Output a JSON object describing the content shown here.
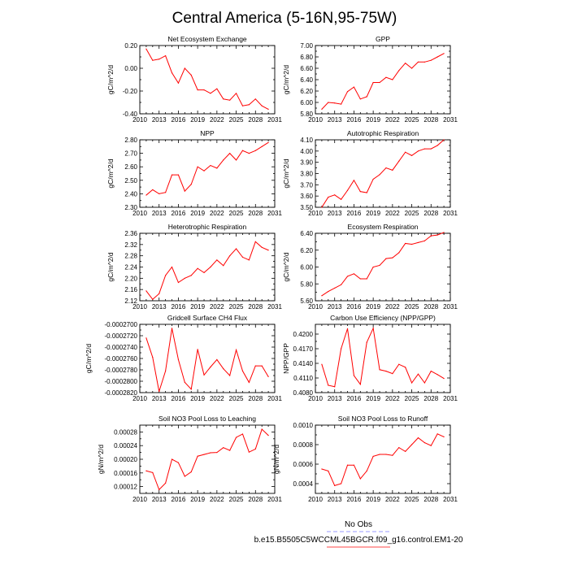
{
  "figure": {
    "title": "Central America (5-16N,95-75W)",
    "legend": [
      {
        "label": "No Obs",
        "color": "#9999ff",
        "dash": true
      },
      {
        "label": "b.e15.B5505C5WCCML45BGCR.f09_g16.control.EM1-20",
        "color": "#ff4444",
        "dash": false
      }
    ]
  },
  "chart_data": [
    {
      "type": "line",
      "title": "Net Ecosystem Exchange",
      "ylabel": "gC/m^2/d",
      "xlabel": "",
      "x": [
        2011,
        2012,
        2013,
        2014,
        2015,
        2016,
        2017,
        2018,
        2019,
        2020,
        2021,
        2022,
        2023,
        2024,
        2025,
        2026,
        2027,
        2028,
        2029,
        2030
      ],
      "series": [
        {
          "name": "b.e15.B5505C5WCCML45BGCR.f09_g16.control.EM1-20",
          "color": "#ff0000",
          "values": [
            0.17,
            0.07,
            0.08,
            0.11,
            -0.04,
            -0.13,
            0.0,
            -0.06,
            -0.19,
            -0.19,
            -0.22,
            -0.18,
            -0.27,
            -0.28,
            -0.22,
            -0.33,
            -0.32,
            -0.27,
            -0.33,
            -0.36
          ]
        }
      ],
      "xlim": [
        2010,
        2031
      ],
      "ylim": [
        -0.4,
        0.2
      ],
      "xticks": [
        2010,
        2013,
        2016,
        2019,
        2022,
        2025,
        2028,
        2031
      ],
      "yticks": [
        -0.4,
        -0.2,
        0.0,
        0.2
      ],
      "ytick_labels": [
        "-0.40",
        "-0.20",
        "0.00",
        "0.20"
      ]
    },
    {
      "type": "line",
      "title": "GPP",
      "ylabel": "gC/m^2/d",
      "xlabel": "",
      "x": [
        2011,
        2012,
        2013,
        2014,
        2015,
        2016,
        2017,
        2018,
        2019,
        2020,
        2021,
        2022,
        2023,
        2024,
        2025,
        2026,
        2027,
        2028,
        2029,
        2030
      ],
      "series": [
        {
          "name": "b.e15.B5505C5WCCML45BGCR.f09_g16.control.EM1-20",
          "color": "#ff0000",
          "values": [
            5.88,
            6.0,
            5.99,
            5.97,
            6.19,
            6.27,
            6.06,
            6.1,
            6.35,
            6.35,
            6.44,
            6.4,
            6.56,
            6.69,
            6.6,
            6.71,
            6.71,
            6.74,
            6.8,
            6.86
          ]
        }
      ],
      "xlim": [
        2010,
        2031
      ],
      "ylim": [
        5.8,
        7.0
      ],
      "xticks": [
        2010,
        2013,
        2016,
        2019,
        2022,
        2025,
        2028,
        2031
      ],
      "yticks": [
        5.8,
        6.0,
        6.2,
        6.4,
        6.6,
        6.8,
        7.0
      ],
      "ytick_labels": [
        "5.80",
        "6.00",
        "6.20",
        "6.40",
        "6.60",
        "6.80",
        "7.00"
      ]
    },
    {
      "type": "line",
      "title": "NPP",
      "ylabel": "gC/m^2/d",
      "xlabel": "",
      "x": [
        2011,
        2012,
        2013,
        2014,
        2015,
        2016,
        2017,
        2018,
        2019,
        2020,
        2021,
        2022,
        2023,
        2024,
        2025,
        2026,
        2027,
        2028,
        2029,
        2030
      ],
      "series": [
        {
          "name": "b.e15.B5505C5WCCML45BGCR.f09_g16.control.EM1-20",
          "color": "#ff0000",
          "values": [
            2.39,
            2.43,
            2.4,
            2.41,
            2.54,
            2.54,
            2.42,
            2.47,
            2.6,
            2.57,
            2.61,
            2.59,
            2.65,
            2.7,
            2.65,
            2.72,
            2.7,
            2.72,
            2.75,
            2.78
          ]
        }
      ],
      "xlim": [
        2010,
        2031
      ],
      "ylim": [
        2.3,
        2.8
      ],
      "xticks": [
        2010,
        2013,
        2016,
        2019,
        2022,
        2025,
        2028,
        2031
      ],
      "yticks": [
        2.3,
        2.4,
        2.5,
        2.6,
        2.7,
        2.8
      ],
      "ytick_labels": [
        "2.30",
        "2.40",
        "2.50",
        "2.60",
        "2.70",
        "2.80"
      ]
    },
    {
      "type": "line",
      "title": "Autotrophic Respiration",
      "ylabel": "gC/m^2/d",
      "xlabel": "",
      "x": [
        2011,
        2012,
        2013,
        2014,
        2015,
        2016,
        2017,
        2018,
        2019,
        2020,
        2021,
        2022,
        2023,
        2024,
        2025,
        2026,
        2027,
        2028,
        2029,
        2030
      ],
      "series": [
        {
          "name": "b.e15.B5505C5WCCML45BGCR.f09_g16.control.EM1-20",
          "color": "#ff0000",
          "values": [
            3.5,
            3.59,
            3.61,
            3.57,
            3.65,
            3.74,
            3.64,
            3.63,
            3.75,
            3.79,
            3.85,
            3.83,
            3.91,
            3.99,
            3.96,
            4.0,
            4.02,
            4.02,
            4.05,
            4.1
          ]
        }
      ],
      "xlim": [
        2010,
        2031
      ],
      "ylim": [
        3.5,
        4.1
      ],
      "xticks": [
        2010,
        2013,
        2016,
        2019,
        2022,
        2025,
        2028,
        2031
      ],
      "yticks": [
        3.5,
        3.6,
        3.7,
        3.8,
        3.9,
        4.0,
        4.1
      ],
      "ytick_labels": [
        "3.50",
        "3.60",
        "3.70",
        "3.80",
        "3.90",
        "4.00",
        "4.10"
      ]
    },
    {
      "type": "line",
      "title": "Heterotrophic Respiration",
      "ylabel": "gC/m^2/d",
      "xlabel": "",
      "x": [
        2011,
        2012,
        2013,
        2014,
        2015,
        2016,
        2017,
        2018,
        2019,
        2020,
        2021,
        2022,
        2023,
        2024,
        2025,
        2026,
        2027,
        2028,
        2029,
        2030
      ],
      "series": [
        {
          "name": "b.e15.B5505C5WCCML45BGCR.f09_g16.control.EM1-20",
          "color": "#ff0000",
          "values": [
            2.155,
            2.125,
            2.145,
            2.21,
            2.24,
            2.185,
            2.2,
            2.21,
            2.235,
            2.22,
            2.24,
            2.265,
            2.245,
            2.28,
            2.305,
            2.275,
            2.265,
            2.33,
            2.31,
            2.3
          ]
        }
      ],
      "xlim": [
        2010,
        2031
      ],
      "ylim": [
        2.12,
        2.36
      ],
      "xticks": [
        2010,
        2013,
        2016,
        2019,
        2022,
        2025,
        2028,
        2031
      ],
      "yticks": [
        2.12,
        2.16,
        2.2,
        2.24,
        2.28,
        2.32,
        2.36
      ],
      "ytick_labels": [
        "2.12",
        "2.16",
        "2.20",
        "2.24",
        "2.28",
        "2.32",
        "2.36"
      ]
    },
    {
      "type": "line",
      "title": "Ecosystem Respiration",
      "ylabel": "gC/m^2/d",
      "xlabel": "",
      "x": [
        2011,
        2012,
        2013,
        2014,
        2015,
        2016,
        2017,
        2018,
        2019,
        2020,
        2021,
        2022,
        2023,
        2024,
        2025,
        2026,
        2027,
        2028,
        2029,
        2030
      ],
      "series": [
        {
          "name": "b.e15.B5505C5WCCML45BGCR.f09_g16.control.EM1-20",
          "color": "#ff0000",
          "values": [
            5.66,
            5.71,
            5.75,
            5.79,
            5.89,
            5.92,
            5.86,
            5.86,
            6.0,
            6.02,
            6.1,
            6.11,
            6.17,
            6.28,
            6.27,
            6.29,
            6.31,
            6.37,
            6.38,
            6.41
          ]
        }
      ],
      "xlim": [
        2010,
        2031
      ],
      "ylim": [
        5.6,
        6.4
      ],
      "xticks": [
        2010,
        2013,
        2016,
        2019,
        2022,
        2025,
        2028,
        2031
      ],
      "yticks": [
        5.6,
        5.8,
        6.0,
        6.2,
        6.4
      ],
      "ytick_labels": [
        "5.60",
        "5.80",
        "6.00",
        "6.20",
        "6.40"
      ]
    },
    {
      "type": "line",
      "title": "Gridcell Surface CH4 Flux",
      "ylabel": "gC/m^2/d",
      "xlabel": "",
      "x": [
        2011,
        2012,
        2013,
        2014,
        2015,
        2016,
        2017,
        2018,
        2019,
        2020,
        2021,
        2022,
        2023,
        2024,
        2025,
        2026,
        2027,
        2028,
        2029,
        2030
      ],
      "series": [
        {
          "name": "b.e15.B5505C5WCCML45BGCR.f09_g16.control.EM1-20",
          "color": "#ff0000",
          "values": [
            -0.0002724,
            -0.0002758,
            -0.0002818,
            -0.0002782,
            -0.0002707,
            -0.0002762,
            -0.0002802,
            -0.0002814,
            -0.0002744,
            -0.0002789,
            -0.0002775,
            -0.0002762,
            -0.0002778,
            -0.000279,
            -0.0002745,
            -0.0002782,
            -0.0002802,
            -0.0002773,
            -0.0002773,
            -0.0002792
          ]
        }
      ],
      "xlim": [
        2010,
        2031
      ],
      "ylim": [
        -0.000282,
        -0.00027
      ],
      "xticks": [
        2010,
        2013,
        2016,
        2019,
        2022,
        2025,
        2028,
        2031
      ],
      "yticks": [
        -0.000282,
        -0.00028,
        -0.000278,
        -0.000276,
        -0.000274,
        -0.000272,
        -0.00027
      ],
      "ytick_labels": [
        "-0.0002820",
        "-0.0002800",
        "-0.0002780",
        "-0.0002760",
        "-0.0002740",
        "-0.0002720",
        "-0.0002700"
      ]
    },
    {
      "type": "line",
      "title": "Carbon Use Efficiency (NPP/GPP)",
      "ylabel": "NPP/GPP",
      "xlabel": "",
      "x": [
        2011,
        2012,
        2013,
        2014,
        2015,
        2016,
        2017,
        2018,
        2019,
        2020,
        2021,
        2022,
        2023,
        2024,
        2025,
        2026,
        2027,
        2028,
        2029,
        2030
      ],
      "series": [
        {
          "name": "b.e15.B5505C5WCCML45BGCR.f09_g16.control.EM1-20",
          "color": "#ff0000",
          "values": [
            0.4138,
            0.4095,
            0.4092,
            0.417,
            0.4211,
            0.4115,
            0.4097,
            0.4183,
            0.4212,
            0.4127,
            0.4124,
            0.4119,
            0.4138,
            0.4132,
            0.41,
            0.4118,
            0.41,
            0.4124,
            0.4117,
            0.4109
          ]
        }
      ],
      "xlim": [
        2010,
        2031
      ],
      "ylim": [
        0.408,
        0.422
      ],
      "xticks": [
        2010,
        2013,
        2016,
        2019,
        2022,
        2025,
        2028,
        2031
      ],
      "yticks": [
        0.408,
        0.411,
        0.414,
        0.417,
        0.42
      ],
      "ytick_labels": [
        "0.4080",
        "0.4110",
        "0.4140",
        "0.4170",
        "0.4200"
      ]
    },
    {
      "type": "line",
      "title": "Soil NO3 Pool Loss to Leaching",
      "ylabel": "gN/m^2/d",
      "xlabel": "",
      "x": [
        2011,
        2012,
        2013,
        2014,
        2015,
        2016,
        2017,
        2018,
        2019,
        2020,
        2021,
        2022,
        2023,
        2024,
        2025,
        2026,
        2027,
        2028,
        2029,
        2030
      ],
      "series": [
        {
          "name": "b.e15.B5505C5WCCML45BGCR.f09_g16.control.EM1-20",
          "color": "#ff0000",
          "values": [
            0.000166,
            0.000161,
            0.000111,
            0.00013,
            0.0002,
            0.00019,
            0.00015,
            0.000163,
            0.000209,
            0.000214,
            0.000219,
            0.00022,
            0.000234,
            0.000226,
            0.000264,
            0.000274,
            0.000221,
            0.00023,
            0.000288,
            0.00027
          ]
        }
      ],
      "xlim": [
        2010,
        2031
      ],
      "ylim": [
        0.0001,
        0.0003
      ],
      "xticks": [
        2010,
        2013,
        2016,
        2019,
        2022,
        2025,
        2028,
        2031
      ],
      "yticks": [
        0.00012,
        0.00016,
        0.0002,
        0.00024,
        0.00028
      ],
      "ytick_labels": [
        "0.00012",
        "0.00016",
        "0.00020",
        "0.00024",
        "0.00028"
      ]
    },
    {
      "type": "line",
      "title": "Soil NO3 Pool Loss to Runoff",
      "ylabel": "gN/m^2/d",
      "xlabel": "",
      "x": [
        2011,
        2012,
        2013,
        2014,
        2015,
        2016,
        2017,
        2018,
        2019,
        2020,
        2021,
        2022,
        2023,
        2024,
        2025,
        2026,
        2027,
        2028,
        2029,
        2030
      ],
      "series": [
        {
          "name": "b.e15.B5505C5WCCML45BGCR.f09_g16.control.EM1-20",
          "color": "#ff0000",
          "values": [
            0.00055,
            0.00053,
            0.00038,
            0.0004,
            0.00059,
            0.00059,
            0.00045,
            0.00053,
            0.00068,
            0.0007,
            0.0007,
            0.00069,
            0.00077,
            0.00073,
            0.0008,
            0.00087,
            0.00082,
            0.00079,
            0.00091,
            0.00088
          ]
        }
      ],
      "xlim": [
        2010,
        2031
      ],
      "ylim": [
        0.0003,
        0.001
      ],
      "xticks": [
        2010,
        2013,
        2016,
        2019,
        2022,
        2025,
        2028,
        2031
      ],
      "yticks": [
        0.0004,
        0.0006,
        0.0008,
        0.001
      ],
      "ytick_labels": [
        "0.0004",
        "0.0006",
        "0.0008",
        "0.0010"
      ]
    }
  ]
}
